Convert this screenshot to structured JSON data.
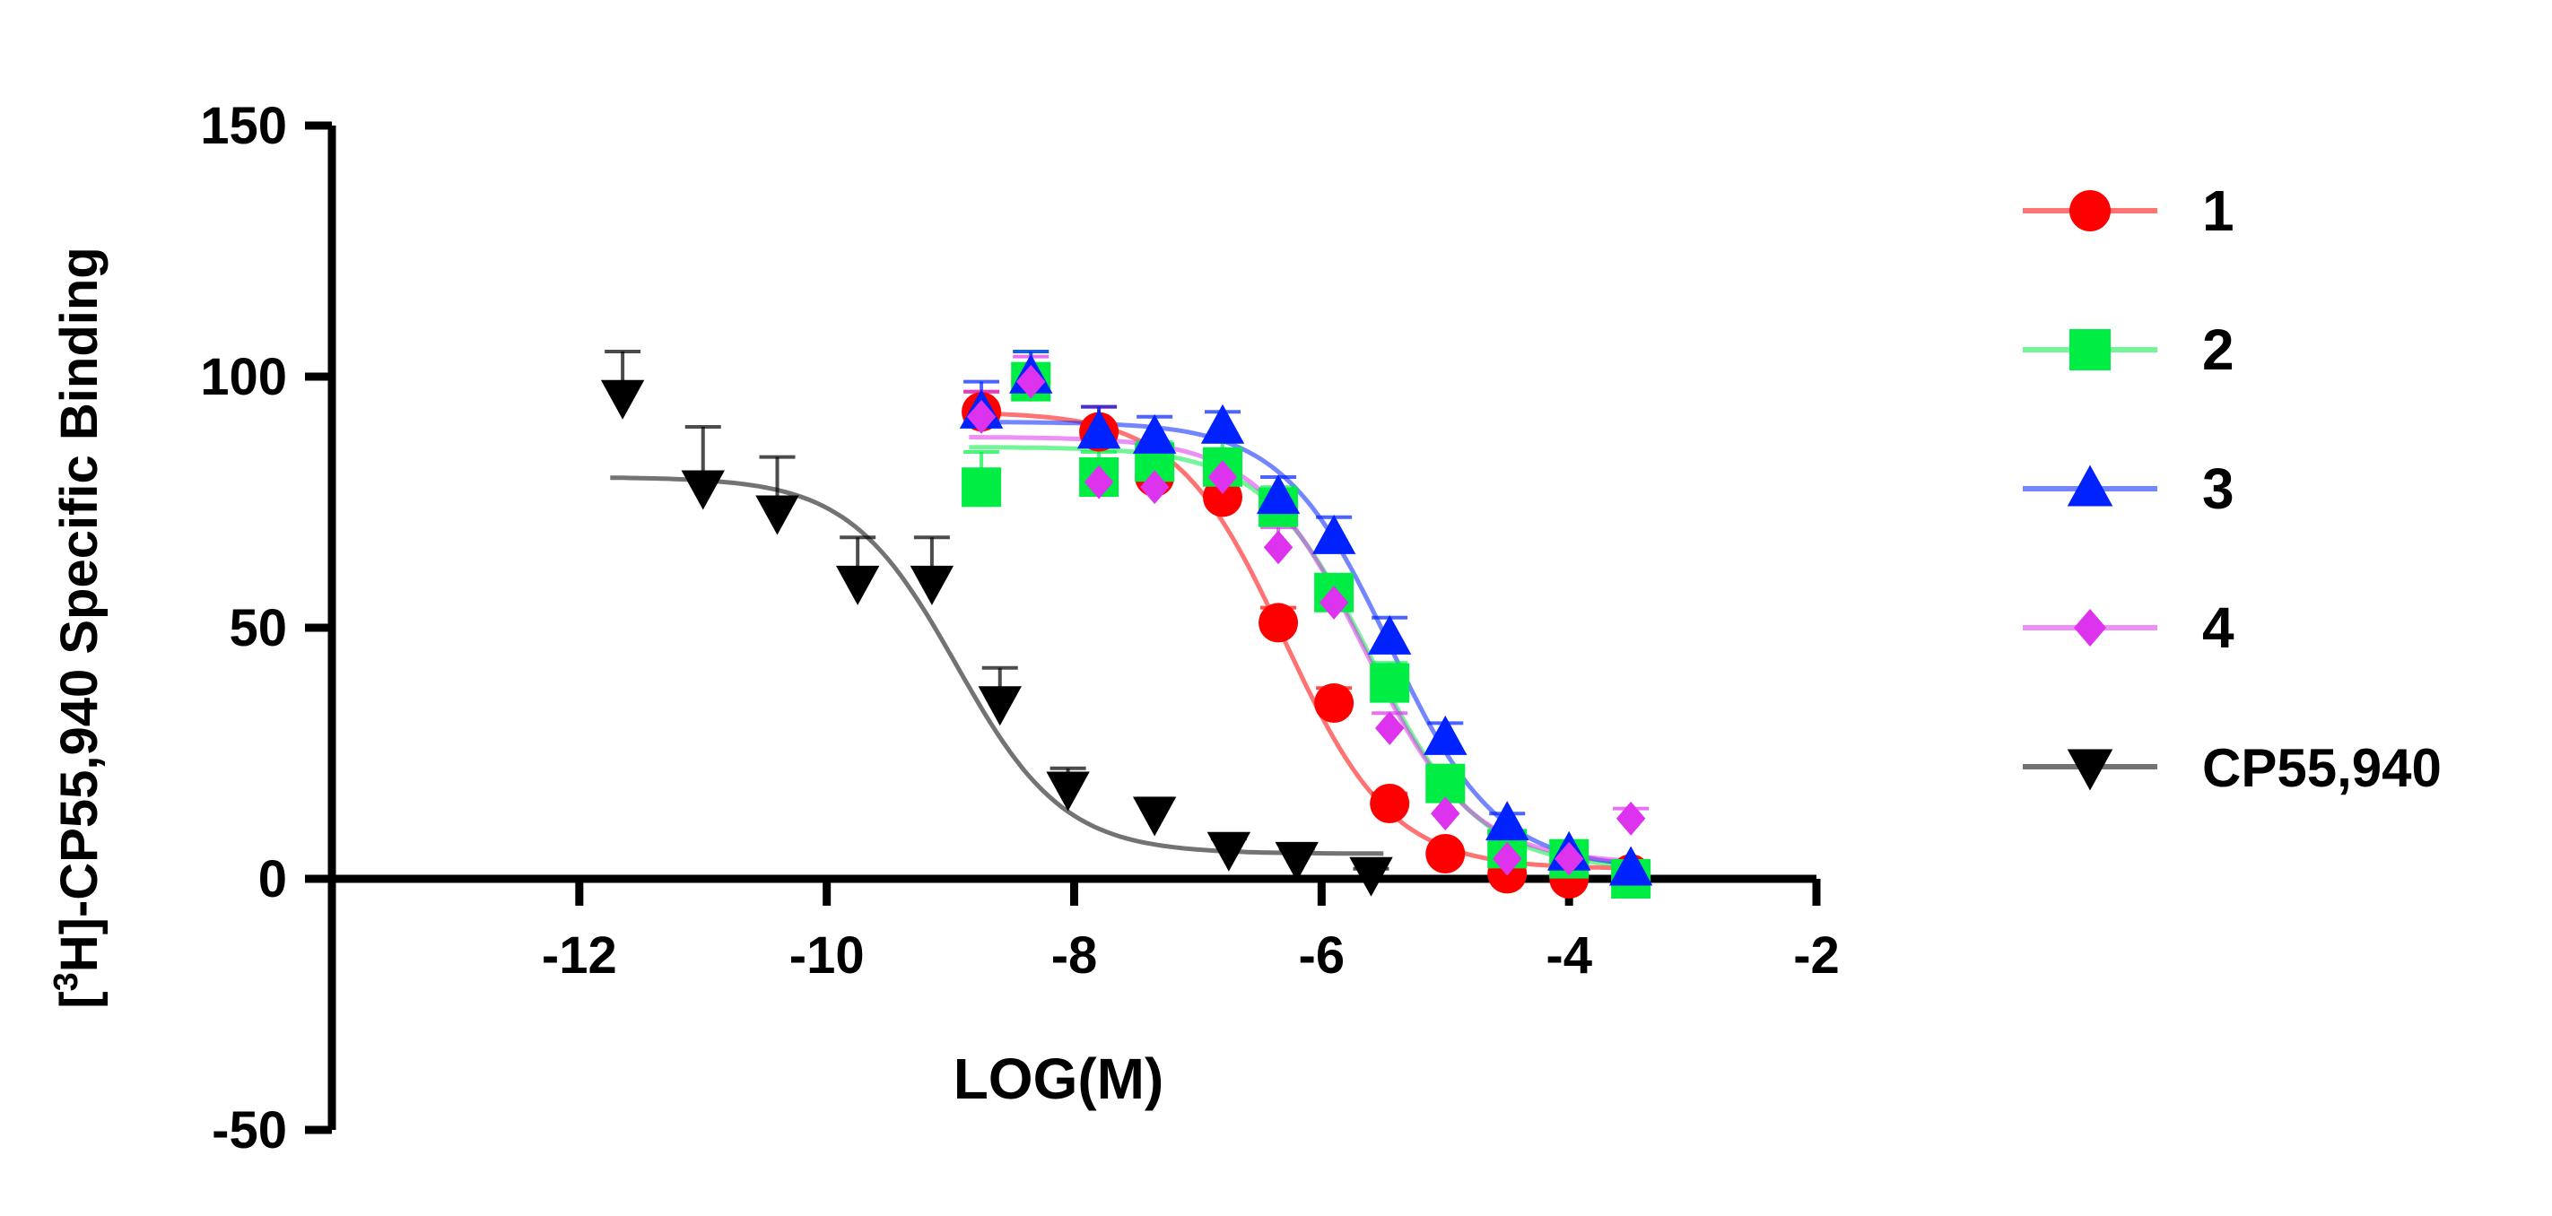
{
  "chart_data": {
    "type": "scatter",
    "title": "",
    "xlabel": "LOG(M)",
    "ylabel_prefix": "[",
    "ylabel_sup": "3",
    "ylabel_main": "H]-CP55,940 Specific Binding",
    "xlim": [
      -14,
      -2
    ],
    "ylim": [
      -50,
      150
    ],
    "xticks": [
      -12,
      -10,
      -8,
      -6,
      -4,
      -2
    ],
    "yticks": [
      -50,
      0,
      50,
      100,
      150
    ],
    "legend_position": "right",
    "series": [
      {
        "name": "1",
        "color": "#ff0000",
        "marker": "circle",
        "x": [
          -8.75,
          -8.35,
          -7.8,
          -7.35,
          -6.8,
          -6.35,
          -5.9,
          -5.45,
          -5.0,
          -4.5,
          -4.0,
          -3.5
        ],
        "y": [
          93,
          99,
          89,
          80,
          76,
          51,
          35,
          15,
          5,
          1,
          0,
          1
        ],
        "err": [
          4,
          3,
          5,
          6,
          3,
          3,
          3,
          2,
          1,
          1,
          1,
          1
        ],
        "fit": {
          "top": 93,
          "bottom": 2,
          "logic50": -6.3,
          "hill": 1.0
        }
      },
      {
        "name": "2",
        "color": "#00ee44",
        "marker": "square",
        "x": [
          -8.75,
          -8.35,
          -7.8,
          -7.35,
          -6.8,
          -6.35,
          -5.9,
          -5.45,
          -5.0,
          -4.5,
          -4.0,
          -3.5
        ],
        "y": [
          78,
          99,
          80,
          83,
          82,
          74,
          57,
          39,
          19,
          6,
          4,
          0
        ],
        "err": [
          7,
          6,
          5,
          4,
          5,
          4,
          3,
          4,
          3,
          2,
          1,
          1
        ],
        "fit": {
          "top": 86,
          "bottom": 2,
          "logic50": -5.6,
          "hill": 1.0
        }
      },
      {
        "name": "3",
        "color": "#0022ff",
        "marker": "triangle-up",
        "x": [
          -8.75,
          -8.35,
          -7.8,
          -7.35,
          -6.8,
          -6.35,
          -5.9,
          -5.45,
          -5.0,
          -4.5,
          -4.0,
          -3.5
        ],
        "y": [
          93,
          100,
          89,
          88,
          90,
          76,
          68,
          48,
          28,
          11,
          5,
          2
        ],
        "err": [
          6,
          5,
          5,
          4,
          3,
          4,
          4,
          4,
          3,
          2,
          1,
          1
        ],
        "fit": {
          "top": 91,
          "bottom": 2,
          "logic50": -5.45,
          "hill": 1.0
        }
      },
      {
        "name": "4",
        "color": "#dd33ee",
        "marker": "diamond",
        "x": [
          -8.75,
          -8.35,
          -7.8,
          -7.35,
          -6.8,
          -6.35,
          -5.9,
          -5.45,
          -5.0,
          -4.5,
          -4.0,
          -3.5
        ],
        "y": [
          92,
          99,
          79,
          78,
          80,
          66,
          55,
          30,
          13,
          4,
          4,
          12
        ],
        "err": [
          5,
          5,
          4,
          7,
          4,
          4,
          4,
          3,
          3,
          2,
          1,
          2
        ],
        "fit": {
          "top": 88,
          "bottom": 3,
          "logic50": -5.65,
          "hill": 1.0
        }
      },
      {
        "name": "CP55,940",
        "color": "#000000",
        "marker": "triangle-down",
        "x": [
          -11.65,
          -11.0,
          -10.4,
          -9.75,
          -9.15,
          -8.6,
          -8.05,
          -7.35,
          -6.75,
          -6.2,
          -5.6
        ],
        "y": [
          96,
          78,
          73,
          59,
          59,
          35,
          18,
          13,
          6,
          4,
          1
        ],
        "err": [
          9,
          12,
          11,
          9,
          9,
          7,
          4,
          3,
          2,
          2,
          1
        ],
        "fit": {
          "top": 80,
          "bottom": 5,
          "logic50": -8.95,
          "hill": 1.0
        }
      }
    ]
  }
}
